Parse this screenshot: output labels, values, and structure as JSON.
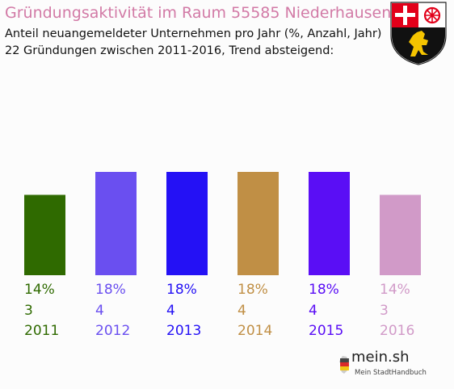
{
  "header": {
    "title": "Gründungsaktivität im Raum 55585 Niederhausen",
    "subtitle_line1": "Anteil neuangemeldeter Unternehmen pro Jahr (%, Anzahl, Jahr)",
    "subtitle_line2": "22 Gründungen zwischen 2011-2016, Trend absteigend:"
  },
  "footer": {
    "brand": "mein.sh",
    "tagline": "Mein StadtHandbuch"
  },
  "colors": {
    "title": "#d27aa6",
    "crest_red": "#e2001a",
    "crest_black": "#111111",
    "crest_gold": "#f5c400"
  },
  "chart_data": {
    "type": "bar",
    "categories": [
      "2011",
      "2012",
      "2013",
      "2014",
      "2015",
      "2016"
    ],
    "values": [
      14,
      18,
      18,
      18,
      18,
      14
    ],
    "counts": [
      3,
      4,
      4,
      4,
      4,
      3
    ],
    "value_labels": [
      "14%",
      "18%",
      "18%",
      "18%",
      "18%",
      "14%"
    ],
    "count_labels": [
      "3",
      "4",
      "4",
      "4",
      "4",
      "3"
    ],
    "colors": [
      "#2f6a00",
      "#6a4ff0",
      "#2411f5",
      "#c08f45",
      "#5a0ef5",
      "#d19ac8"
    ],
    "ylim": [
      0,
      18
    ],
    "grid": false,
    "xlabel": "",
    "ylabel": ""
  }
}
